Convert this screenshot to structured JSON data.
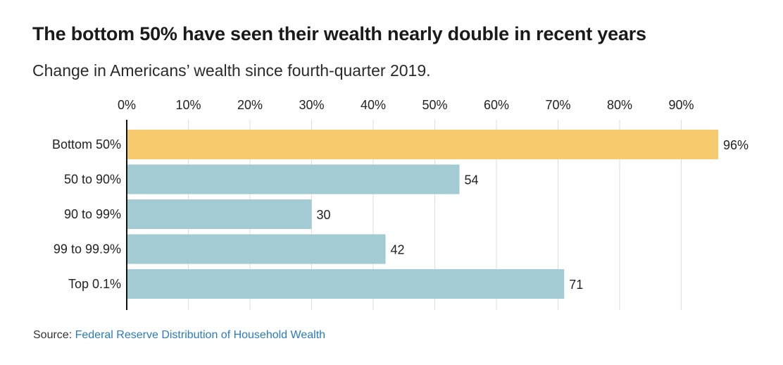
{
  "header": {
    "title": "The bottom 50% have seen their wealth nearly double in recent years",
    "subtitle": "Change in Americans’ wealth since fourth-quarter 2019."
  },
  "source": {
    "label": "Source:",
    "link_text": "Federal Reserve Distribution of Household Wealth"
  },
  "colors": {
    "highlight": "#f7ca6e",
    "bar": "#a3cbd3",
    "grid": "#dddddd",
    "axis": "#111111",
    "link": "#2a7cbf"
  },
  "chart_data": {
    "type": "bar",
    "orientation": "horizontal",
    "title": "The bottom 50% have seen their wealth nearly double in recent years",
    "subtitle": "Change in Americans’ wealth since fourth-quarter 2019.",
    "xlabel": "",
    "ylabel": "",
    "xlim": [
      0,
      100
    ],
    "x_ticks": [
      0,
      10,
      20,
      30,
      40,
      50,
      60,
      70,
      80,
      90
    ],
    "x_tick_labels": [
      "0%",
      "10%",
      "20%",
      "30%",
      "40%",
      "50%",
      "60%",
      "70%",
      "80%",
      "90%"
    ],
    "grid": true,
    "categories": [
      "Bottom 50%",
      "50 to 90%",
      "90 to 99%",
      "99 to 99.9%",
      "Top 0.1%"
    ],
    "values": [
      96,
      54,
      30,
      42,
      71
    ],
    "value_labels": [
      "96%",
      "54",
      "30",
      "42",
      "71"
    ],
    "highlight_index": 0
  }
}
